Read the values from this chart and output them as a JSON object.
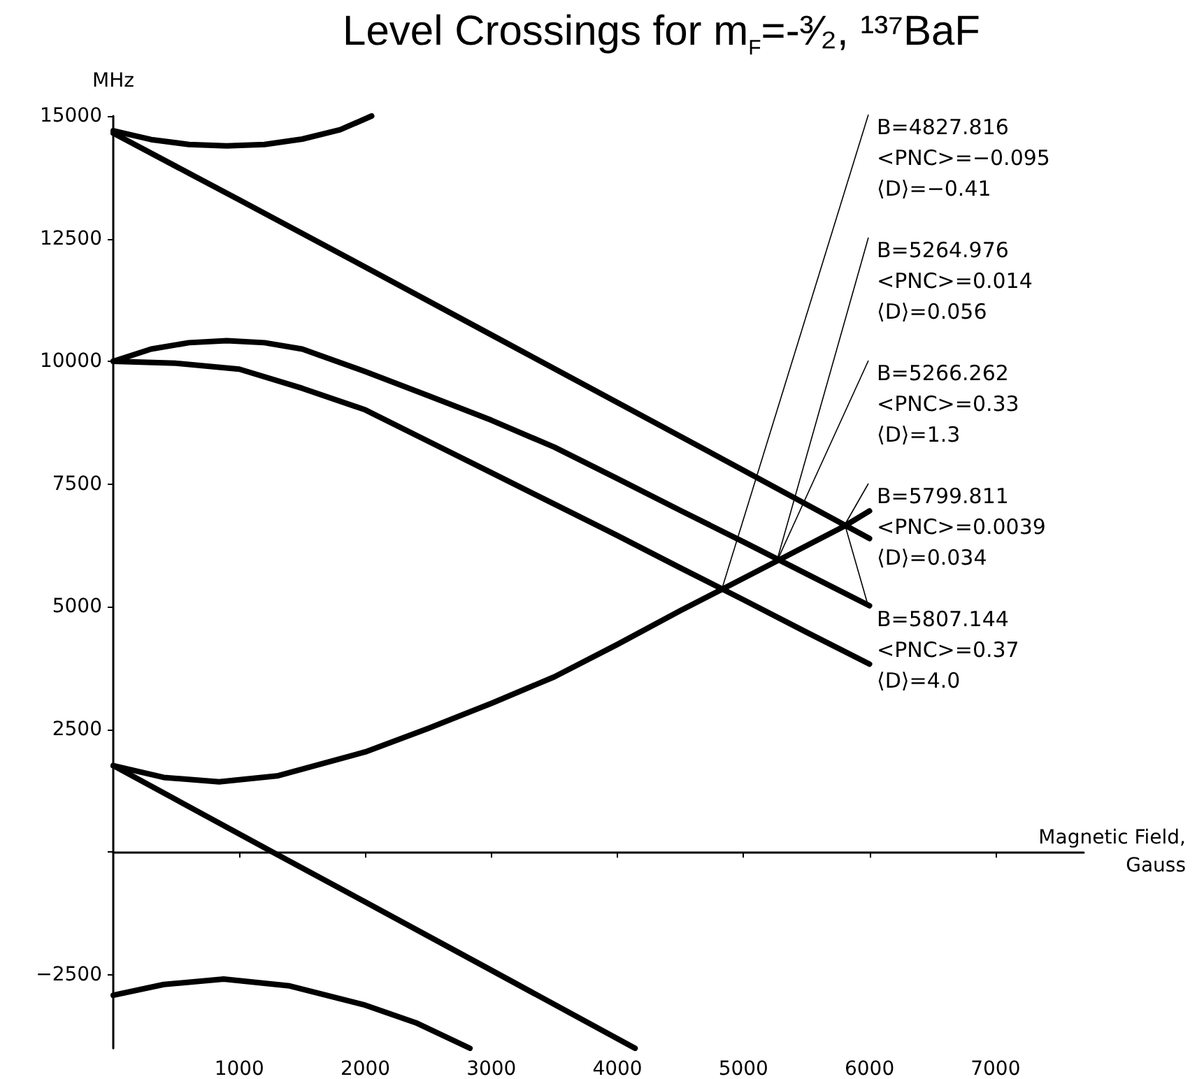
{
  "chart_data": {
    "type": "line",
    "title": "Level Crossings for m$_{F}$=-³⁄₂, ¹³⁷BaF",
    "xlabel": "Magnetic Field,\nGauss",
    "ylabel": "MHz",
    "xlim": [
      0,
      7700
    ],
    "ylim": [
      -4000,
      15000
    ],
    "xticks": [
      1000,
      2000,
      3000,
      4000,
      5000,
      6000,
      7000
    ],
    "yticks": [
      {
        "value": -2500,
        "label": "−2500"
      },
      {
        "value": 0,
        "label": null
      },
      2500,
      5000,
      7500,
      10000,
      12500,
      15000
    ],
    "series": [
      {
        "color": "#000000",
        "x": [
          0,
          300,
          600,
          900,
          1200,
          1500,
          1800,
          2050
        ],
        "values": [
          14700,
          14520,
          14420,
          14390,
          14420,
          14530,
          14720,
          15000
        ]
      },
      {
        "color": "#000000",
        "x": [
          0,
          1000,
          2000,
          3000,
          4000,
          5000,
          6000
        ],
        "values": [
          14650,
          13290,
          11920,
          10540,
          9160,
          7780,
          6390
        ]
      },
      {
        "color": "#000000",
        "x": [
          0,
          300,
          600,
          900,
          1200,
          1500,
          2000,
          2500,
          3000,
          3500,
          4000,
          4500,
          5000,
          5500,
          6000
        ],
        "values": [
          10000,
          10250,
          10380,
          10420,
          10380,
          10250,
          9790,
          9300,
          8800,
          8250,
          7610,
          6960,
          6320,
          5670,
          5020
        ]
      },
      {
        "color": "#000000",
        "x": [
          0,
          500,
          1000,
          1500,
          2000,
          2500,
          3000,
          3500,
          4000,
          4500,
          5000,
          5500,
          6000
        ],
        "values": [
          10000,
          9960,
          9840,
          9450,
          9010,
          8370,
          7730,
          7090,
          6450,
          5790,
          5140,
          4480,
          3830
        ]
      },
      {
        "color": "#000000",
        "x": [
          0,
          400,
          840,
          1300,
          2000,
          2500,
          3000,
          3500,
          4000,
          4500,
          4828,
          5266,
          5800,
          6000
        ],
        "values": [
          1760,
          1520,
          1430,
          1550,
          2040,
          2520,
          3030,
          3570,
          4230,
          4920,
          5350,
          5930,
          6640,
          6950
        ]
      },
      {
        "color": "#000000",
        "x": [
          0,
          1264,
          2000,
          3000,
          4140
        ],
        "values": [
          1760,
          0,
          -1020,
          -2410,
          -4000
        ]
      },
      {
        "color": "#000000",
        "x": [
          0,
          400,
          876,
          1400,
          1985,
          2400,
          2830
        ],
        "values": [
          -2920,
          -2700,
          -2590,
          -2730,
          -3110,
          -3480,
          -4000
        ]
      }
    ],
    "annotations": [
      {
        "text": "B=4827.816\n<PNC>=−0.095\n⟨D⟩=−0.41",
        "x": 4827.816,
        "y": 5350
      },
      {
        "text": "B=5264.976\n<PNC>=0.014\n⟨D⟩=0.056",
        "x": 5264.976,
        "y": 5930
      },
      {
        "text": "B=5266.262\n<PNC>=0.33\n⟨D⟩=1.3",
        "x": 5266.262,
        "y": 5930
      },
      {
        "text": "B=5799.811\n<PNC>=0.0039\n⟨D⟩=0.034",
        "x": 5799.811,
        "y": 6650
      },
      {
        "text": "B=5807.144\n<PNC>=0.37\n⟨D⟩=4.0",
        "x": 5807.144,
        "y": 6650
      }
    ]
  }
}
